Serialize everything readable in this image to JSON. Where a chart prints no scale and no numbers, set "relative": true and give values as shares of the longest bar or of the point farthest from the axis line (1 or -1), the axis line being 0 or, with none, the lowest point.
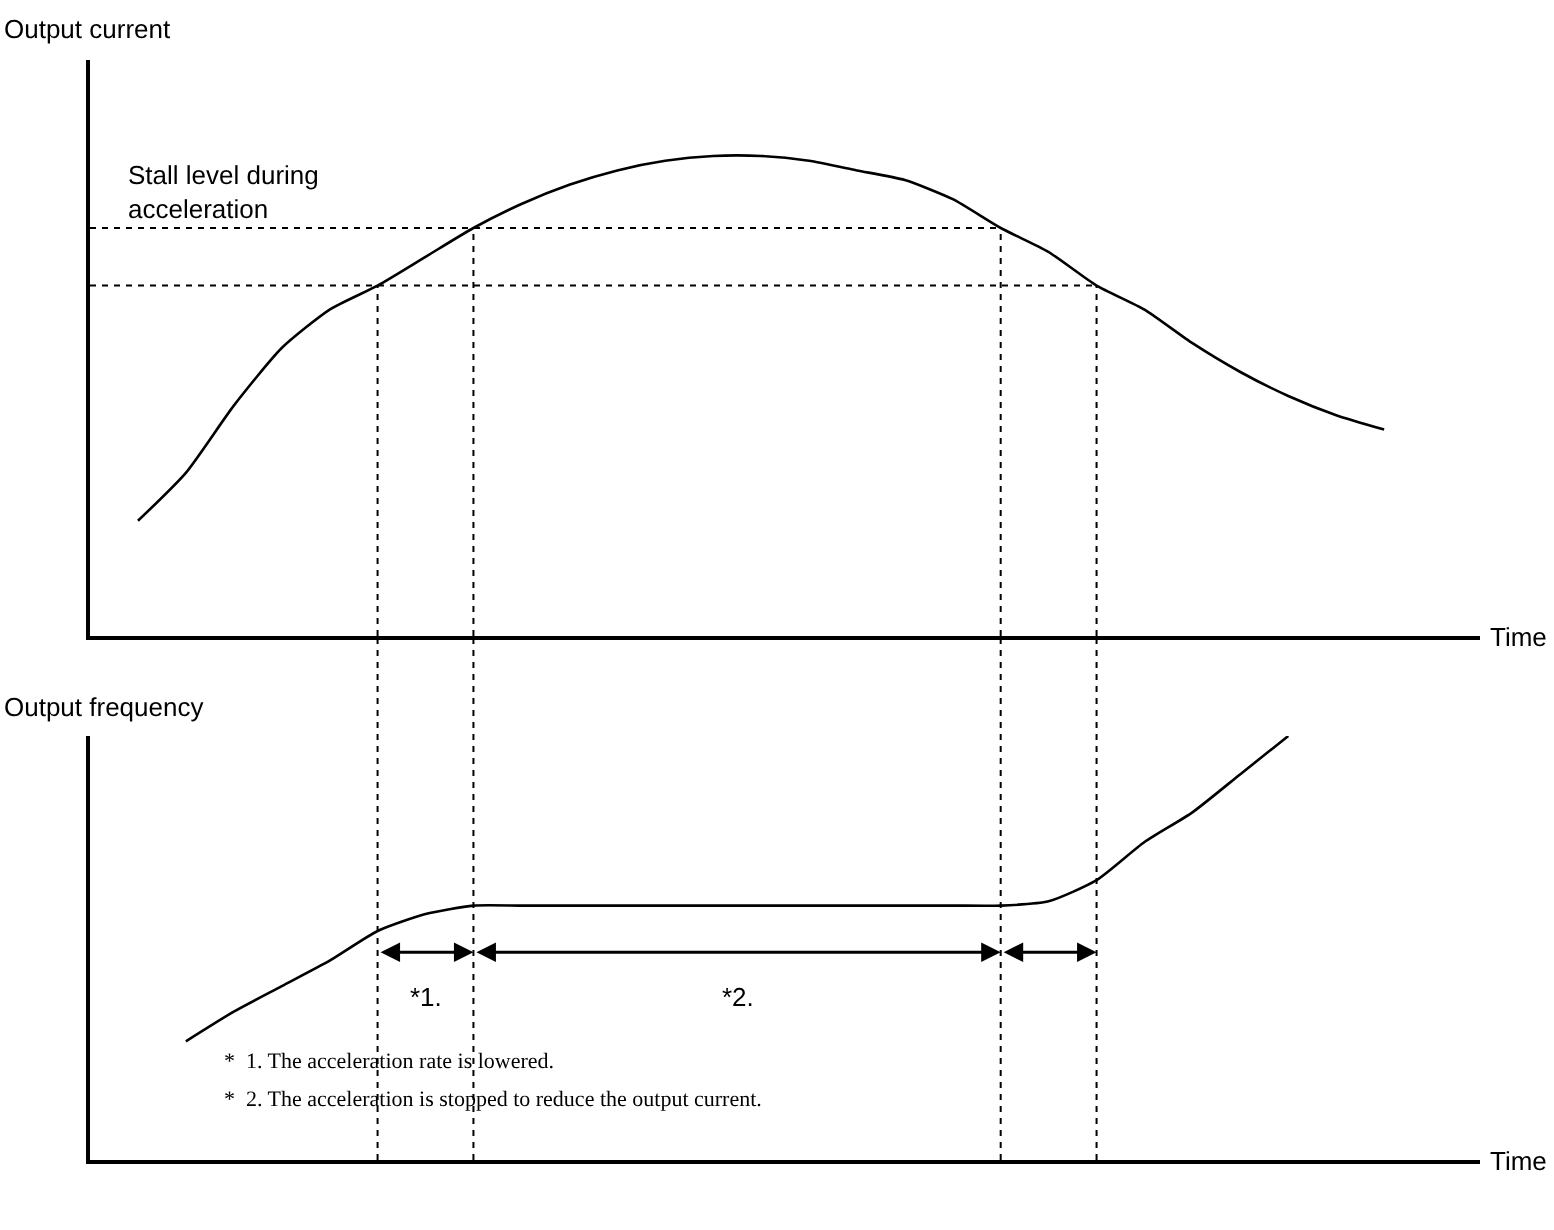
{
  "chart_data": [
    {
      "type": "line",
      "relative": true,
      "ylabel": "Output current",
      "xlabel": "Time",
      "grid": "x",
      "marker": "none",
      "line_style": "solid",
      "categories": [
        null,
        null,
        null,
        null,
        null,
        null,
        null,
        null,
        null,
        null,
        null,
        null,
        null,
        null,
        null,
        null,
        null,
        null,
        null,
        null,
        null,
        null,
        null,
        null,
        null,
        null,
        null,
        null,
        null,
        null
      ],
      "series": [
        {
          "color": "#000000",
          "values": [
            null,
            0.24,
            0.34,
            0.48,
            0.6,
            0.68,
            0.73,
            0.79,
            0.85,
            0.9,
            0.94,
            0.97,
            0.99,
            1,
            1,
            0.99,
            0.97,
            0.95,
            0.91,
            0.85,
            0.8,
            0.73,
            0.68,
            0.61,
            0.55,
            0.5,
            0.46,
            0.43,
            null,
            null
          ]
        }
      ],
      "ref_lines": [
        {
          "axis": "y",
          "value": 0.85,
          "line_style": "dotted",
          "color": "#000000"
        },
        {
          "axis": "y",
          "value": 0.73,
          "line_style": "dotted",
          "color": "#000000"
        }
      ],
      "annotations": [
        {
          "text": "Stall level during\nacceleration",
          "y": 0.85
        }
      ]
    },
    {
      "type": "line",
      "relative": true,
      "ylabel": "Output frequency",
      "xlabel": "Time",
      "grid": "x",
      "marker": "none",
      "line_style": "solid",
      "categories": [
        null,
        null,
        null,
        null,
        null,
        null,
        null,
        null,
        null,
        null,
        null,
        null,
        null,
        null,
        null,
        null,
        null,
        null,
        null,
        null,
        null,
        null,
        null,
        null,
        null,
        null,
        null,
        null,
        null,
        null
      ],
      "series": [
        {
          "color": "#000000",
          "values": [
            null,
            null,
            0.28,
            0.35,
            0.41,
            0.47,
            0.54,
            0.58,
            0.6,
            0.6,
            0.6,
            0.6,
            0.6,
            0.6,
            0.6,
            0.6,
            0.6,
            0.6,
            0.6,
            0.6,
            0.61,
            0.66,
            0.75,
            0.82,
            0.91,
            1,
            null,
            null,
            null,
            null
          ]
        }
      ],
      "annotations": [
        "*1.",
        "*2.",
        "*  1. The acceleration rate is lowered.",
        "*  2. The acceleration is stopped to reduce the output current."
      ]
    }
  ]
}
